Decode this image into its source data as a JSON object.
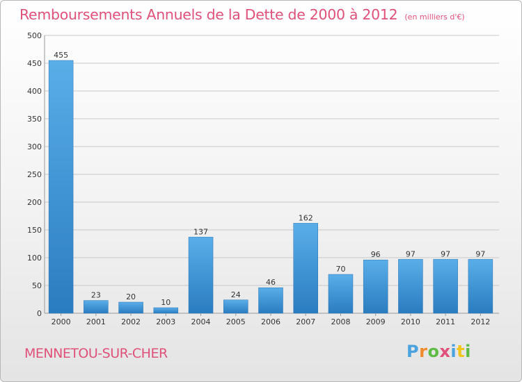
{
  "title": "Remboursements Annuels de la Dette de 2000 à 2012",
  "unit": "(en milliers d'€)",
  "town": "MENNETOU-SUR-CHER",
  "logo": {
    "text": "Proxiti",
    "letters": [
      {
        "ch": "P",
        "color": "#4aa3df"
      },
      {
        "ch": "r",
        "color": "#f08a2c"
      },
      {
        "ch": "o",
        "color": "#5dbb46"
      },
      {
        "ch": "x",
        "color": "#e0517a"
      },
      {
        "ch": "i",
        "color": "#4aa3df"
      },
      {
        "ch": "t",
        "color": "#f0c419"
      },
      {
        "ch": "i",
        "color": "#5dbb46"
      }
    ]
  },
  "colors": {
    "title": "#e0517a",
    "bar_top": "#5aaee8",
    "bar_bottom": "#2a7cc0",
    "grid": "#c8c8c8",
    "axis_text": "#333333"
  },
  "chart_data": {
    "type": "bar",
    "categories": [
      "2000",
      "2001",
      "2002",
      "2003",
      "2004",
      "2005",
      "2006",
      "2007",
      "2008",
      "2009",
      "2010",
      "2011",
      "2012"
    ],
    "values": [
      455,
      23,
      20,
      10,
      137,
      24,
      46,
      162,
      70,
      96,
      97,
      97,
      97
    ],
    "ylim": [
      0,
      500
    ],
    "yticks": [
      0,
      50,
      100,
      150,
      200,
      250,
      300,
      350,
      400,
      450,
      500
    ],
    "grid": true,
    "xlabel": "",
    "ylabel": ""
  }
}
